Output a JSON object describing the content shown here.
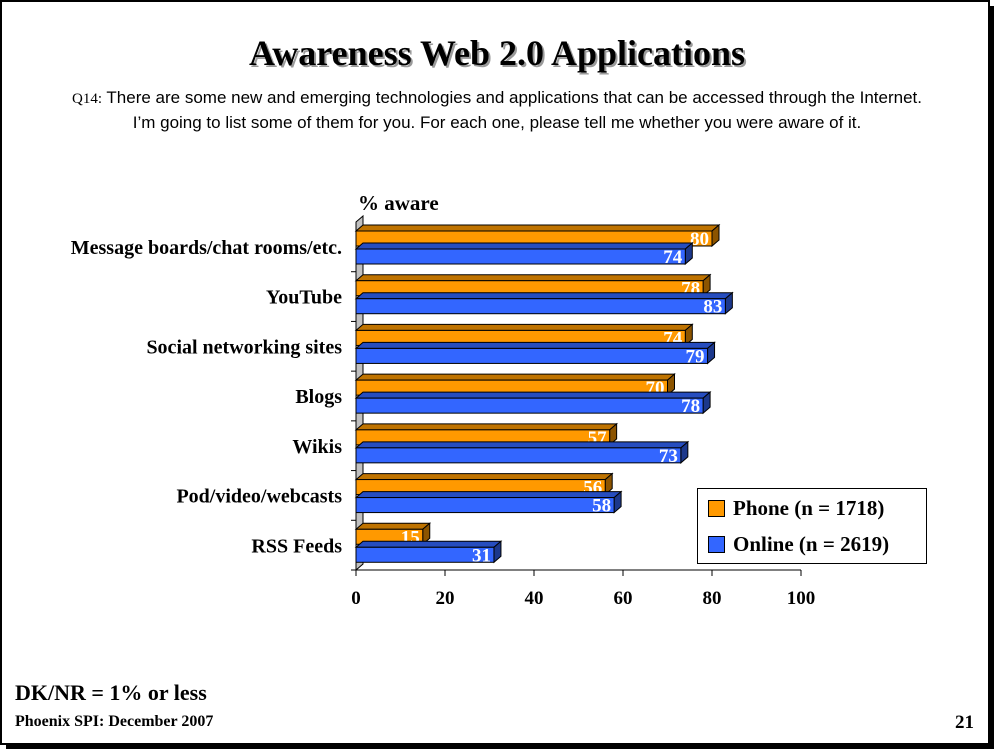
{
  "title": "Awareness Web 2.0 Applications",
  "question": {
    "code": "Q14:",
    "line1": "There are some new and emerging technologies and applications that can be accessed through the Internet.",
    "line2": "I’m going to list some of them for you. For each one, please tell me whether you were aware of it."
  },
  "chart_data": {
    "type": "bar",
    "orientation": "horizontal",
    "unit_label": "% aware",
    "categories": [
      "Message boards/chat rooms/etc.",
      "YouTube",
      "Social networking sites",
      "Blogs",
      "Wikis",
      "Pod/video/webcasts",
      "RSS Feeds"
    ],
    "series": [
      {
        "name": "Phone (n = 1718)",
        "color": "#ff9900",
        "values": [
          80,
          78,
          74,
          70,
          57,
          56,
          15
        ]
      },
      {
        "name": "Online (n = 2619)",
        "color": "#3366ff",
        "values": [
          74,
          83,
          79,
          78,
          73,
          58,
          31
        ]
      }
    ],
    "xlim": [
      0,
      100
    ],
    "xticks": [
      0,
      20,
      40,
      60,
      80,
      100
    ],
    "grid": false,
    "legend_position": "bottom-right",
    "data_labels": true
  },
  "footnote": "DK/NR = 1% or less",
  "source": "Phoenix SPI: December 2007",
  "page_number": "21"
}
